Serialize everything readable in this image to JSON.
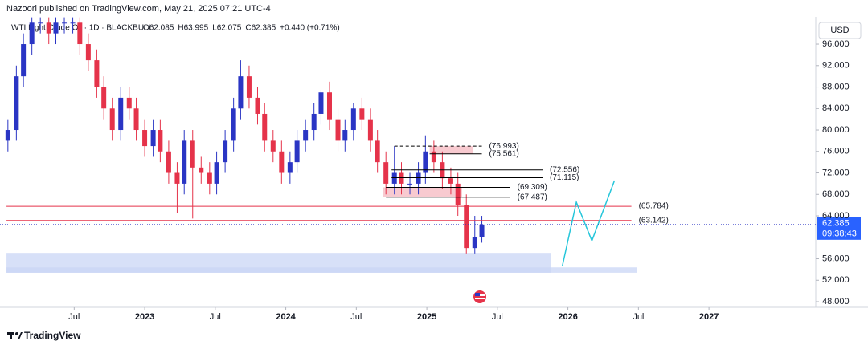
{
  "header": "Nazoori published on TradingView.com, May 21, 2025 07:21 UTC-4",
  "footer": "TradingView",
  "chart_data": {
    "type": "candlestick",
    "symbol": "WTI Light Crude Oil · 1D · BLACKBULL",
    "ohlc_legend": [
      "O62.085",
      "H63.995",
      "L62.075",
      "C62.385",
      "+0.440 (+0.71%)"
    ],
    "currency": "USD",
    "x": [
      2022.03,
      2022.09,
      2022.14,
      2022.2,
      2022.26,
      2022.32,
      2022.37,
      2022.43,
      2022.49,
      2022.54,
      2022.6,
      2022.66,
      2022.71,
      2022.77,
      2022.83,
      2022.89,
      2022.94,
      2023.0,
      2023.06,
      2023.11,
      2023.17,
      2023.23,
      2023.28,
      2023.34,
      2023.4,
      2023.46,
      2023.51,
      2023.57,
      2023.63,
      2023.68,
      2023.74,
      2023.8,
      2023.85,
      2023.91,
      2023.97,
      2024.03,
      2024.08,
      2024.14,
      2024.2,
      2024.25,
      2024.31,
      2024.37,
      2024.42,
      2024.48,
      2024.54,
      2024.6,
      2024.65,
      2024.71,
      2024.77,
      2024.82,
      2024.88,
      2024.94,
      2024.99,
      2025.05,
      2025.11,
      2025.17,
      2025.22,
      2025.28,
      2025.34,
      2025.39
    ],
    "open": [
      78,
      80,
      90,
      96,
      100,
      100,
      98,
      100,
      100,
      100,
      96,
      93,
      88,
      84,
      80,
      86,
      84,
      80,
      77,
      80,
      76,
      72,
      70,
      78,
      73,
      72,
      70,
      74,
      78,
      84,
      90,
      86,
      83,
      78,
      76,
      72,
      74,
      78,
      80,
      83,
      87,
      82,
      78,
      80,
      84,
      82,
      78,
      74,
      70,
      72,
      70,
      70,
      72,
      76,
      74,
      71,
      70,
      66,
      58,
      60
    ],
    "high": [
      82,
      92,
      98,
      101,
      101,
      101,
      101,
      101,
      101,
      101,
      98,
      95,
      90,
      86,
      88,
      88,
      86,
      82,
      82,
      82,
      78,
      74,
      80,
      80,
      75,
      74,
      76,
      80,
      86,
      93,
      92,
      88,
      85,
      80,
      78,
      76,
      80,
      82,
      85,
      87.5,
      89,
      84,
      82,
      85,
      86,
      84,
      80,
      76,
      77,
      74,
      72,
      74,
      79,
      78,
      76,
      73,
      72,
      68,
      64,
      63.995
    ],
    "low": [
      76,
      78,
      88,
      94,
      98,
      96,
      96,
      98,
      98,
      94,
      91,
      86,
      82,
      78,
      78,
      82,
      78,
      75,
      75,
      74,
      70,
      64.5,
      68,
      63.5,
      70,
      68,
      68,
      72,
      76,
      82,
      84,
      81,
      76,
      74,
      70,
      70,
      72,
      76,
      78,
      81,
      80,
      76,
      76,
      78,
      80,
      76,
      72,
      68,
      68,
      68,
      68,
      68,
      70,
      72,
      69,
      68,
      64,
      57,
      57,
      59
    ],
    "close": [
      80,
      90,
      96,
      100,
      100,
      98,
      100,
      100,
      100,
      96,
      93,
      88,
      84,
      80,
      86,
      84,
      80,
      77,
      80,
      76,
      72,
      70,
      78,
      73,
      72,
      70,
      74,
      78,
      84,
      90,
      86,
      83,
      78,
      76,
      72,
      74,
      78,
      80,
      83,
      87,
      82,
      78,
      80,
      84,
      82,
      78,
      74,
      70,
      72,
      70,
      70,
      72,
      76,
      74,
      71,
      70,
      66,
      58,
      60,
      62.385
    ],
    "up_color": "#2a35c4",
    "down_color": "#e5334a",
    "last_price": 62.385,
    "countdown": "09:38:43",
    "levels": {
      "values": [
        76.993,
        75.561,
        72.556,
        71.115,
        69.309,
        67.487,
        65.784,
        63.142
      ],
      "value_labels": [
        "(76.993)",
        "(75.561)",
        "(72.556)",
        "(71.115)",
        "(69.309)",
        "(67.487)",
        "(65.784)",
        "(63.142)"
      ],
      "colors": [
        "#000000",
        "#000000",
        "#000000",
        "#000000",
        "#000000",
        "#000000",
        "#e5334a",
        "#e5334a"
      ],
      "x_start": [
        2024.77,
        2025.02,
        2024.75,
        2024.75,
        2024.71,
        2024.71,
        2022.02,
        2022.02
      ],
      "x_end": [
        2025.39,
        2025.39,
        2025.82,
        2025.82,
        2025.59,
        2025.59,
        2026.45,
        2026.45
      ],
      "dashed": [
        true,
        false,
        false,
        false,
        false,
        false,
        false,
        false
      ]
    },
    "zones": [
      {
        "low": 75.561,
        "high": 76.993,
        "x": [
          2025.02,
          2025.33
        ],
        "color": "#f5b8c0"
      },
      {
        "low": 67.487,
        "high": 69.309,
        "x": [
          2024.69,
          2025.25
        ],
        "color": "#f5b8c0"
      },
      {
        "low": 53.4,
        "high": 57.1,
        "x": [
          2022.02,
          2025.88
        ],
        "color": "#c9d5f5"
      },
      {
        "low": 53.4,
        "high": 54.4,
        "x": [
          2022.02,
          2026.49
        ],
        "color": "#c9d5f5"
      }
    ],
    "projection": {
      "color": "#26c6da",
      "x": [
        2025.96,
        2026.06,
        2026.17,
        2026.33
      ],
      "values": [
        54.58,
        66.54,
        59.36,
        70.58
      ]
    },
    "xlim": [
      2021.974,
      2027.76
    ],
    "xticks": [
      {
        "value": 2022.5,
        "label": "Jul"
      },
      2023,
      {
        "value": 2023.5,
        "label": "Jul"
      },
      2024,
      {
        "value": 2024.5,
        "label": "Jul"
      },
      2025,
      {
        "value": 2025.5,
        "label": "Jul"
      },
      2026,
      {
        "value": 2026.5,
        "label": "Jul"
      },
      2027
    ],
    "ylim": [
      47,
      101
    ],
    "yticks": [
      {
        "value": 48,
        "label": "48.000"
      },
      {
        "value": 52,
        "label": "52.000"
      },
      {
        "value": 56,
        "label": "56.000"
      },
      {
        "value": 64,
        "label": "64.000"
      },
      {
        "value": 68,
        "label": "68.000"
      },
      {
        "value": 72,
        "label": "72.000"
      },
      {
        "value": 76,
        "label": "76.000"
      },
      {
        "value": 80,
        "label": "80.000"
      },
      {
        "value": 84,
        "label": "84.000"
      },
      {
        "value": 88,
        "label": "88.000"
      },
      {
        "value": 92,
        "label": "92.000"
      },
      {
        "value": 96,
        "label": "96.000"
      }
    ]
  }
}
